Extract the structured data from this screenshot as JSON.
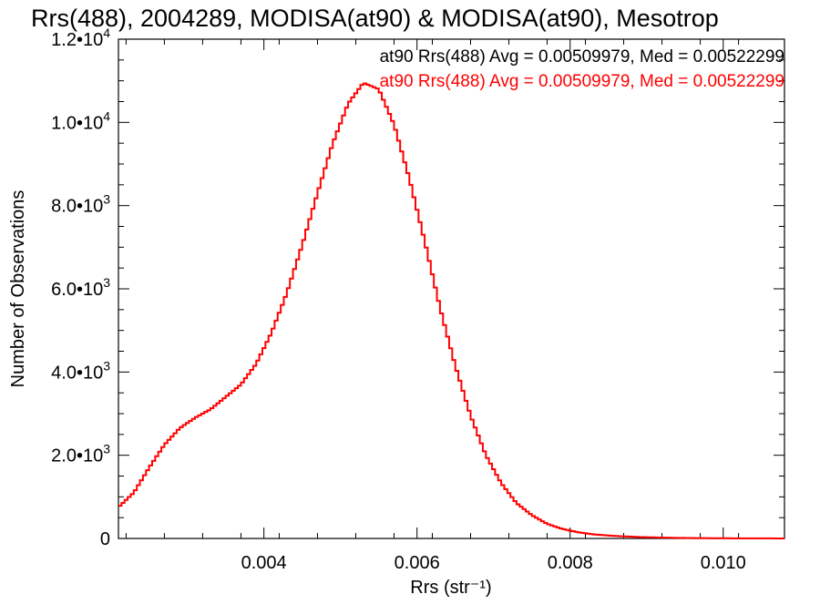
{
  "chart_data": {
    "type": "histogram",
    "title": "Rrs(488), 2004289, MODISA(at90) & MODISA(at90), Mesotrop",
    "xlabel": "Rrs (str⁻¹)",
    "ylabel": "Number of Observations",
    "xlim": [
      0.0021,
      0.0108
    ],
    "ylim": [
      0,
      12000
    ],
    "x_ticks": [
      {
        "value": 0.004,
        "label": "0.004"
      },
      {
        "value": 0.006,
        "label": "0.006"
      },
      {
        "value": 0.008,
        "label": "0.008"
      },
      {
        "value": 0.01,
        "label": "0.010"
      }
    ],
    "y_ticks": [
      {
        "value": 0,
        "mant": "0",
        "exp": ""
      },
      {
        "value": 2000,
        "mant": "2.0•10",
        "exp": "3"
      },
      {
        "value": 4000,
        "mant": "4.0•10",
        "exp": "3"
      },
      {
        "value": 6000,
        "mant": "6.0•10",
        "exp": "3"
      },
      {
        "value": 8000,
        "mant": "8.0•10",
        "exp": "3"
      },
      {
        "value": 10000,
        "mant": "1.0•10",
        "exp": "4"
      },
      {
        "value": 12000,
        "mant": "1.2•10",
        "exp": "4"
      }
    ],
    "annotations": [
      {
        "text": "at90 Rrs(488) Avg = 0.00509979, Med = 0.00522299",
        "color": "#000000"
      },
      {
        "text": "at90 Rrs(488) Avg = 0.00509979, Med = 0.00522299",
        "color": "#ff0000"
      }
    ],
    "series": [
      {
        "color": "#ff0000",
        "points": [
          [
            0.0021,
            750
          ],
          [
            0.0023,
            1100
          ],
          [
            0.0025,
            1700
          ],
          [
            0.0027,
            2250
          ],
          [
            0.0029,
            2650
          ],
          [
            0.0031,
            2900
          ],
          [
            0.0033,
            3100
          ],
          [
            0.0035,
            3400
          ],
          [
            0.0037,
            3700
          ],
          [
            0.0039,
            4200
          ],
          [
            0.0041,
            4950
          ],
          [
            0.0043,
            5900
          ],
          [
            0.0045,
            7050
          ],
          [
            0.0047,
            8300
          ],
          [
            0.0049,
            9500
          ],
          [
            0.0051,
            10450
          ],
          [
            0.0053,
            10950
          ],
          [
            0.0055,
            10800
          ],
          [
            0.0057,
            9950
          ],
          [
            0.0059,
            8650
          ],
          [
            0.0061,
            7150
          ],
          [
            0.0063,
            5550
          ],
          [
            0.0065,
            4150
          ],
          [
            0.0067,
            2950
          ],
          [
            0.0069,
            2000
          ],
          [
            0.0071,
            1330
          ],
          [
            0.0073,
            850
          ],
          [
            0.0075,
            560
          ],
          [
            0.0077,
            350
          ],
          [
            0.0079,
            230
          ],
          [
            0.0081,
            150
          ],
          [
            0.0083,
            100
          ],
          [
            0.0085,
            70
          ],
          [
            0.0087,
            50
          ],
          [
            0.0089,
            35
          ],
          [
            0.0091,
            25
          ],
          [
            0.0093,
            18
          ],
          [
            0.0095,
            12
          ],
          [
            0.0097,
            8
          ],
          [
            0.0099,
            6
          ],
          [
            0.0101,
            4
          ],
          [
            0.0103,
            3
          ],
          [
            0.0105,
            2
          ],
          [
            0.0108,
            1
          ]
        ]
      }
    ]
  }
}
